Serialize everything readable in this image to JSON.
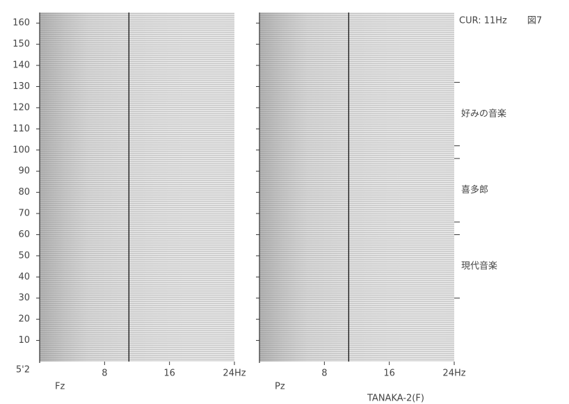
{
  "chart_data": {
    "type": "spectral-stack",
    "figure_label": "図7",
    "cursor": {
      "value": 11,
      "label": "CUR: 11Hz"
    },
    "panels": [
      "Fz",
      "Pz"
    ],
    "xlim": [
      0,
      24
    ],
    "xticks": [
      8,
      16,
      {
        "value": 24,
        "label": "24Hz"
      }
    ],
    "ylim": [
      0,
      165
    ],
    "yticks": [
      10,
      20,
      30,
      40,
      50,
      60,
      70,
      80,
      90,
      100,
      110,
      120,
      130,
      140,
      150,
      160
    ],
    "y_start_label": "5'2",
    "segments": [
      {
        "label": "好みの音楽",
        "start": 102,
        "end": 132
      },
      {
        "label": "喜多郎",
        "start": 66,
        "end": 96
      },
      {
        "label": "現代音楽",
        "start": 30,
        "end": 60
      }
    ],
    "footer": "TANAKA-2(F)"
  }
}
